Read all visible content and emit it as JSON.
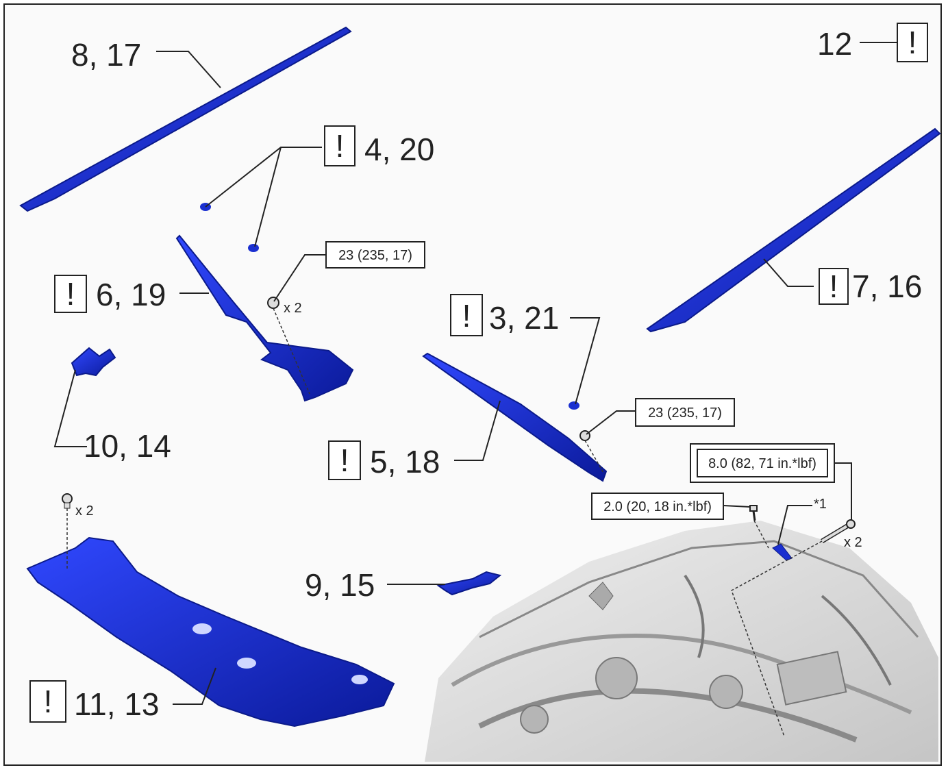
{
  "callouts": {
    "c8_17": "8, 17",
    "c12": "12",
    "c4_20": "4, 20",
    "c6_19": "6, 19",
    "c3_21": "3, 21",
    "c7_16": "7, 16",
    "c10_14": "10, 14",
    "c5_18": "5, 18",
    "c9_15": "9, 15",
    "c11_13": "11, 13",
    "star1": "*1"
  },
  "caution_mark": "!",
  "torques": {
    "t_nut_left": "23 (235, 17)",
    "t_nut_right": "23 (235, 17)",
    "t_bolt_large": "8.0 (82, 71 in.*lbf)",
    "t_bolt_small": "2.0 (20, 18 in.*lbf)"
  },
  "quantities": {
    "q_nut_left": "x 2",
    "q_clip_cowl": "x 2",
    "q_bolt": "x 2"
  },
  "colors": {
    "part_blue": "#1a2fd0",
    "part_dark": "#0b1a8a",
    "engine_gray": "#c8c8c8",
    "line": "#222222"
  }
}
